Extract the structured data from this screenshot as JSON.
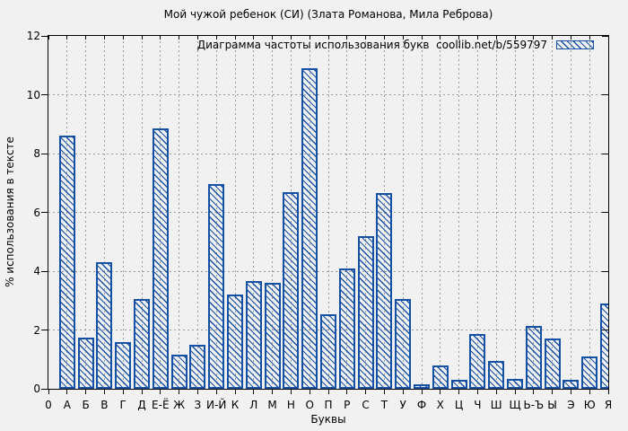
{
  "colors": {
    "bar": "#1450a3",
    "grid": "#9a9a9a",
    "frame": "#000000",
    "text": "#000000",
    "background": "#f1f1f1"
  },
  "chart_data": {
    "type": "bar",
    "title": "Мой чужой ребенок (СИ) (Злата Романова, Мила Реброва)",
    "legend_label": "Диаграмма частоты использования букв  coollib.net/b/559797",
    "legend_position": "top-right-inside",
    "legend_swatch": "hatched-box",
    "xlabel": "Буквы",
    "ylabel": "% использования в тексте",
    "ylim": [
      0,
      12
    ],
    "yticks": [
      0,
      2,
      4,
      6,
      8,
      10,
      12
    ],
    "grid": true,
    "bar_style": "diagonal-hatch-outline",
    "categories": [
      "0",
      "А",
      "Б",
      "В",
      "Г",
      "Д",
      "Е-Ё",
      "Ж",
      "З",
      "И-Й",
      "К",
      "Л",
      "М",
      "Н",
      "О",
      "П",
      "Р",
      "С",
      "Т",
      "У",
      "Ф",
      "Х",
      "Ц",
      "Ч",
      "Ш",
      "Щ",
      "Ь-Ъ",
      "Ы",
      "Э",
      "Ю",
      "Я"
    ],
    "values": [
      0,
      8.6,
      1.75,
      4.3,
      1.6,
      3.05,
      8.85,
      1.15,
      1.5,
      6.95,
      3.2,
      3.65,
      3.6,
      6.7,
      10.9,
      2.55,
      4.1,
      5.2,
      6.65,
      3.05,
      0.15,
      0.8,
      0.3,
      1.85,
      0.95,
      0.35,
      2.15,
      1.7,
      0.3,
      1.1,
      2.9
    ]
  }
}
